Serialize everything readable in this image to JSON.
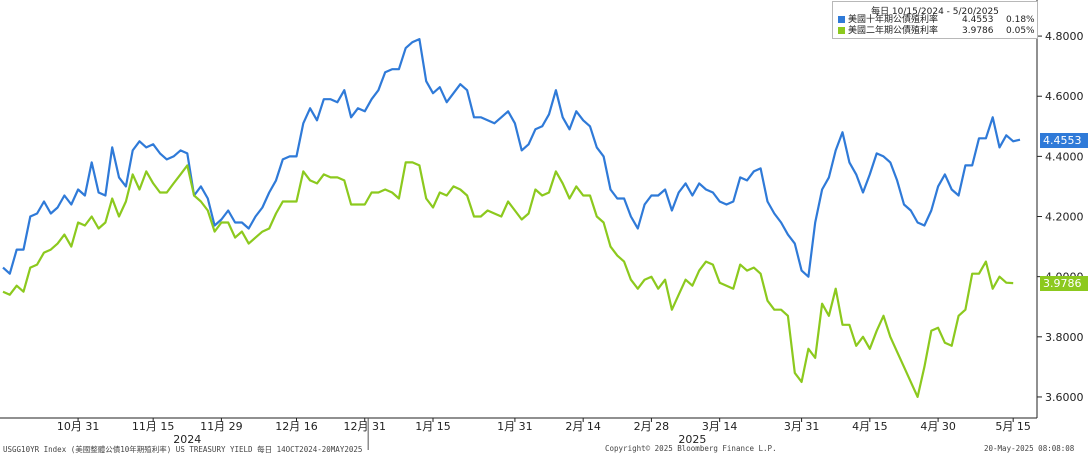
{
  "chart_data": {
    "type": "line",
    "legend": {
      "title": "每日 10/15/2024 - 5/20/2025",
      "placement": "top-right"
    },
    "series": [
      {
        "name": "美國十年期公債殖利率",
        "color": "#2f7ad8",
        "last_value": "4.4553",
        "change": "0.18%",
        "values": [
          4.03,
          4.01,
          4.09,
          4.09,
          4.2,
          4.21,
          4.25,
          4.21,
          4.23,
          4.27,
          4.24,
          4.29,
          4.27,
          4.38,
          4.28,
          4.27,
          4.43,
          4.33,
          4.3,
          4.42,
          4.45,
          4.43,
          4.44,
          4.41,
          4.39,
          4.4,
          4.42,
          4.41,
          4.27,
          4.3,
          4.26,
          4.17,
          4.19,
          4.22,
          4.18,
          4.18,
          4.16,
          4.2,
          4.23,
          4.28,
          4.32,
          4.39,
          4.4,
          4.4,
          4.51,
          4.56,
          4.52,
          4.59,
          4.59,
          4.58,
          4.62,
          4.53,
          4.56,
          4.55,
          4.59,
          4.62,
          4.68,
          4.69,
          4.69,
          4.76,
          4.78,
          4.79,
          4.65,
          4.61,
          4.63,
          4.58,
          4.61,
          4.64,
          4.62,
          4.53,
          4.53,
          4.52,
          4.51,
          4.53,
          4.55,
          4.51,
          4.42,
          4.44,
          4.49,
          4.5,
          4.54,
          4.62,
          4.53,
          4.49,
          4.55,
          4.52,
          4.5,
          4.43,
          4.4,
          4.29,
          4.26,
          4.26,
          4.2,
          4.16,
          4.24,
          4.27,
          4.27,
          4.29,
          4.22,
          4.28,
          4.31,
          4.27,
          4.31,
          4.29,
          4.28,
          4.25,
          4.24,
          4.25,
          4.33,
          4.32,
          4.35,
          4.36,
          4.25,
          4.21,
          4.18,
          4.14,
          4.11,
          4.02,
          4.0,
          4.18,
          4.29,
          4.33,
          4.42,
          4.48,
          4.38,
          4.34,
          4.28,
          4.34,
          4.41,
          4.4,
          4.38,
          4.32,
          4.24,
          4.22,
          4.18,
          4.17,
          4.22,
          4.3,
          4.34,
          4.29,
          4.27,
          4.37,
          4.37,
          4.46,
          4.46,
          4.53,
          4.43,
          4.47,
          4.45,
          4.4553
        ]
      },
      {
        "name": "美國二年期公債殖利率",
        "color": "#8cc91e",
        "last_value": "3.9786",
        "change": "0.05%",
        "values": [
          3.95,
          3.94,
          3.97,
          3.95,
          4.03,
          4.04,
          4.08,
          4.09,
          4.11,
          4.14,
          4.1,
          4.18,
          4.17,
          4.2,
          4.16,
          4.18,
          4.26,
          4.2,
          4.25,
          4.34,
          4.29,
          4.35,
          4.31,
          4.28,
          4.28,
          4.31,
          4.34,
          4.37,
          4.27,
          4.25,
          4.22,
          4.15,
          4.18,
          4.18,
          4.13,
          4.15,
          4.11,
          4.13,
          4.15,
          4.16,
          4.21,
          4.25,
          4.25,
          4.25,
          4.35,
          4.32,
          4.31,
          4.34,
          4.33,
          4.33,
          4.32,
          4.24,
          4.24,
          4.24,
          4.28,
          4.28,
          4.29,
          4.28,
          4.26,
          4.38,
          4.38,
          4.37,
          4.26,
          4.23,
          4.28,
          4.27,
          4.3,
          4.29,
          4.27,
          4.2,
          4.2,
          4.22,
          4.21,
          4.2,
          4.25,
          4.22,
          4.19,
          4.21,
          4.29,
          4.27,
          4.28,
          4.35,
          4.31,
          4.26,
          4.3,
          4.27,
          4.27,
          4.2,
          4.18,
          4.1,
          4.07,
          4.05,
          3.99,
          3.96,
          3.99,
          4.0,
          3.96,
          3.99,
          3.89,
          3.94,
          3.99,
          3.97,
          4.02,
          4.05,
          4.04,
          3.98,
          3.97,
          3.96,
          4.04,
          4.02,
          4.03,
          4.01,
          3.92,
          3.89,
          3.89,
          3.87,
          3.68,
          3.65,
          3.76,
          3.73,
          3.91,
          3.87,
          3.96,
          3.84,
          3.84,
          3.77,
          3.8,
          3.76,
          3.82,
          3.87,
          3.8,
          3.75,
          3.7,
          3.65,
          3.6,
          3.7,
          3.82,
          3.83,
          3.78,
          3.77,
          3.87,
          3.89,
          4.01,
          4.01,
          4.05,
          3.96,
          4.0,
          3.98,
          3.9786
        ]
      }
    ],
    "ylim": [
      3.53,
      4.92
    ],
    "y_ticks": [
      "4.8000",
      "4.6000",
      "4.4000",
      "4.2000",
      "4.0000",
      "3.8000",
      "3.6000"
    ],
    "y_tick_values": [
      4.8,
      4.6,
      4.4,
      4.2,
      4.0,
      3.8,
      3.6
    ],
    "x_ticks": [
      {
        "label": "10月 31",
        "index": 11
      },
      {
        "label": "11月 15",
        "index": 22
      },
      {
        "label": "11月 29",
        "index": 32
      },
      {
        "label": "12月 16",
        "index": 43
      },
      {
        "label": "12月 31",
        "index": 53
      },
      {
        "label": "1月 15",
        "index": 63
      },
      {
        "label": "1月 31",
        "index": 75
      },
      {
        "label": "2月 14",
        "index": 85
      },
      {
        "label": "2月 28",
        "index": 95
      },
      {
        "label": "3月 14",
        "index": 105
      },
      {
        "label": "3月 31",
        "index": 117
      },
      {
        "label": "4月 15",
        "index": 127
      },
      {
        "label": "4月 30",
        "index": 137
      },
      {
        "label": "5月 15",
        "index": 148
      }
    ],
    "year_labels": [
      {
        "label": "2024",
        "index": 27
      },
      {
        "label": "2025",
        "index": 101
      }
    ],
    "year_divider_index": 53.5,
    "grid": false
  },
  "footer": {
    "left": "USGG10YR Index (美國整體公債10年期殖利率) US TREASURY YIELD  每日 14OCT2024-20MAY2025",
    "center": "Copyright© 2025 Bloomberg Finance L.P.",
    "right": "20-May-2025 08:08:08"
  }
}
